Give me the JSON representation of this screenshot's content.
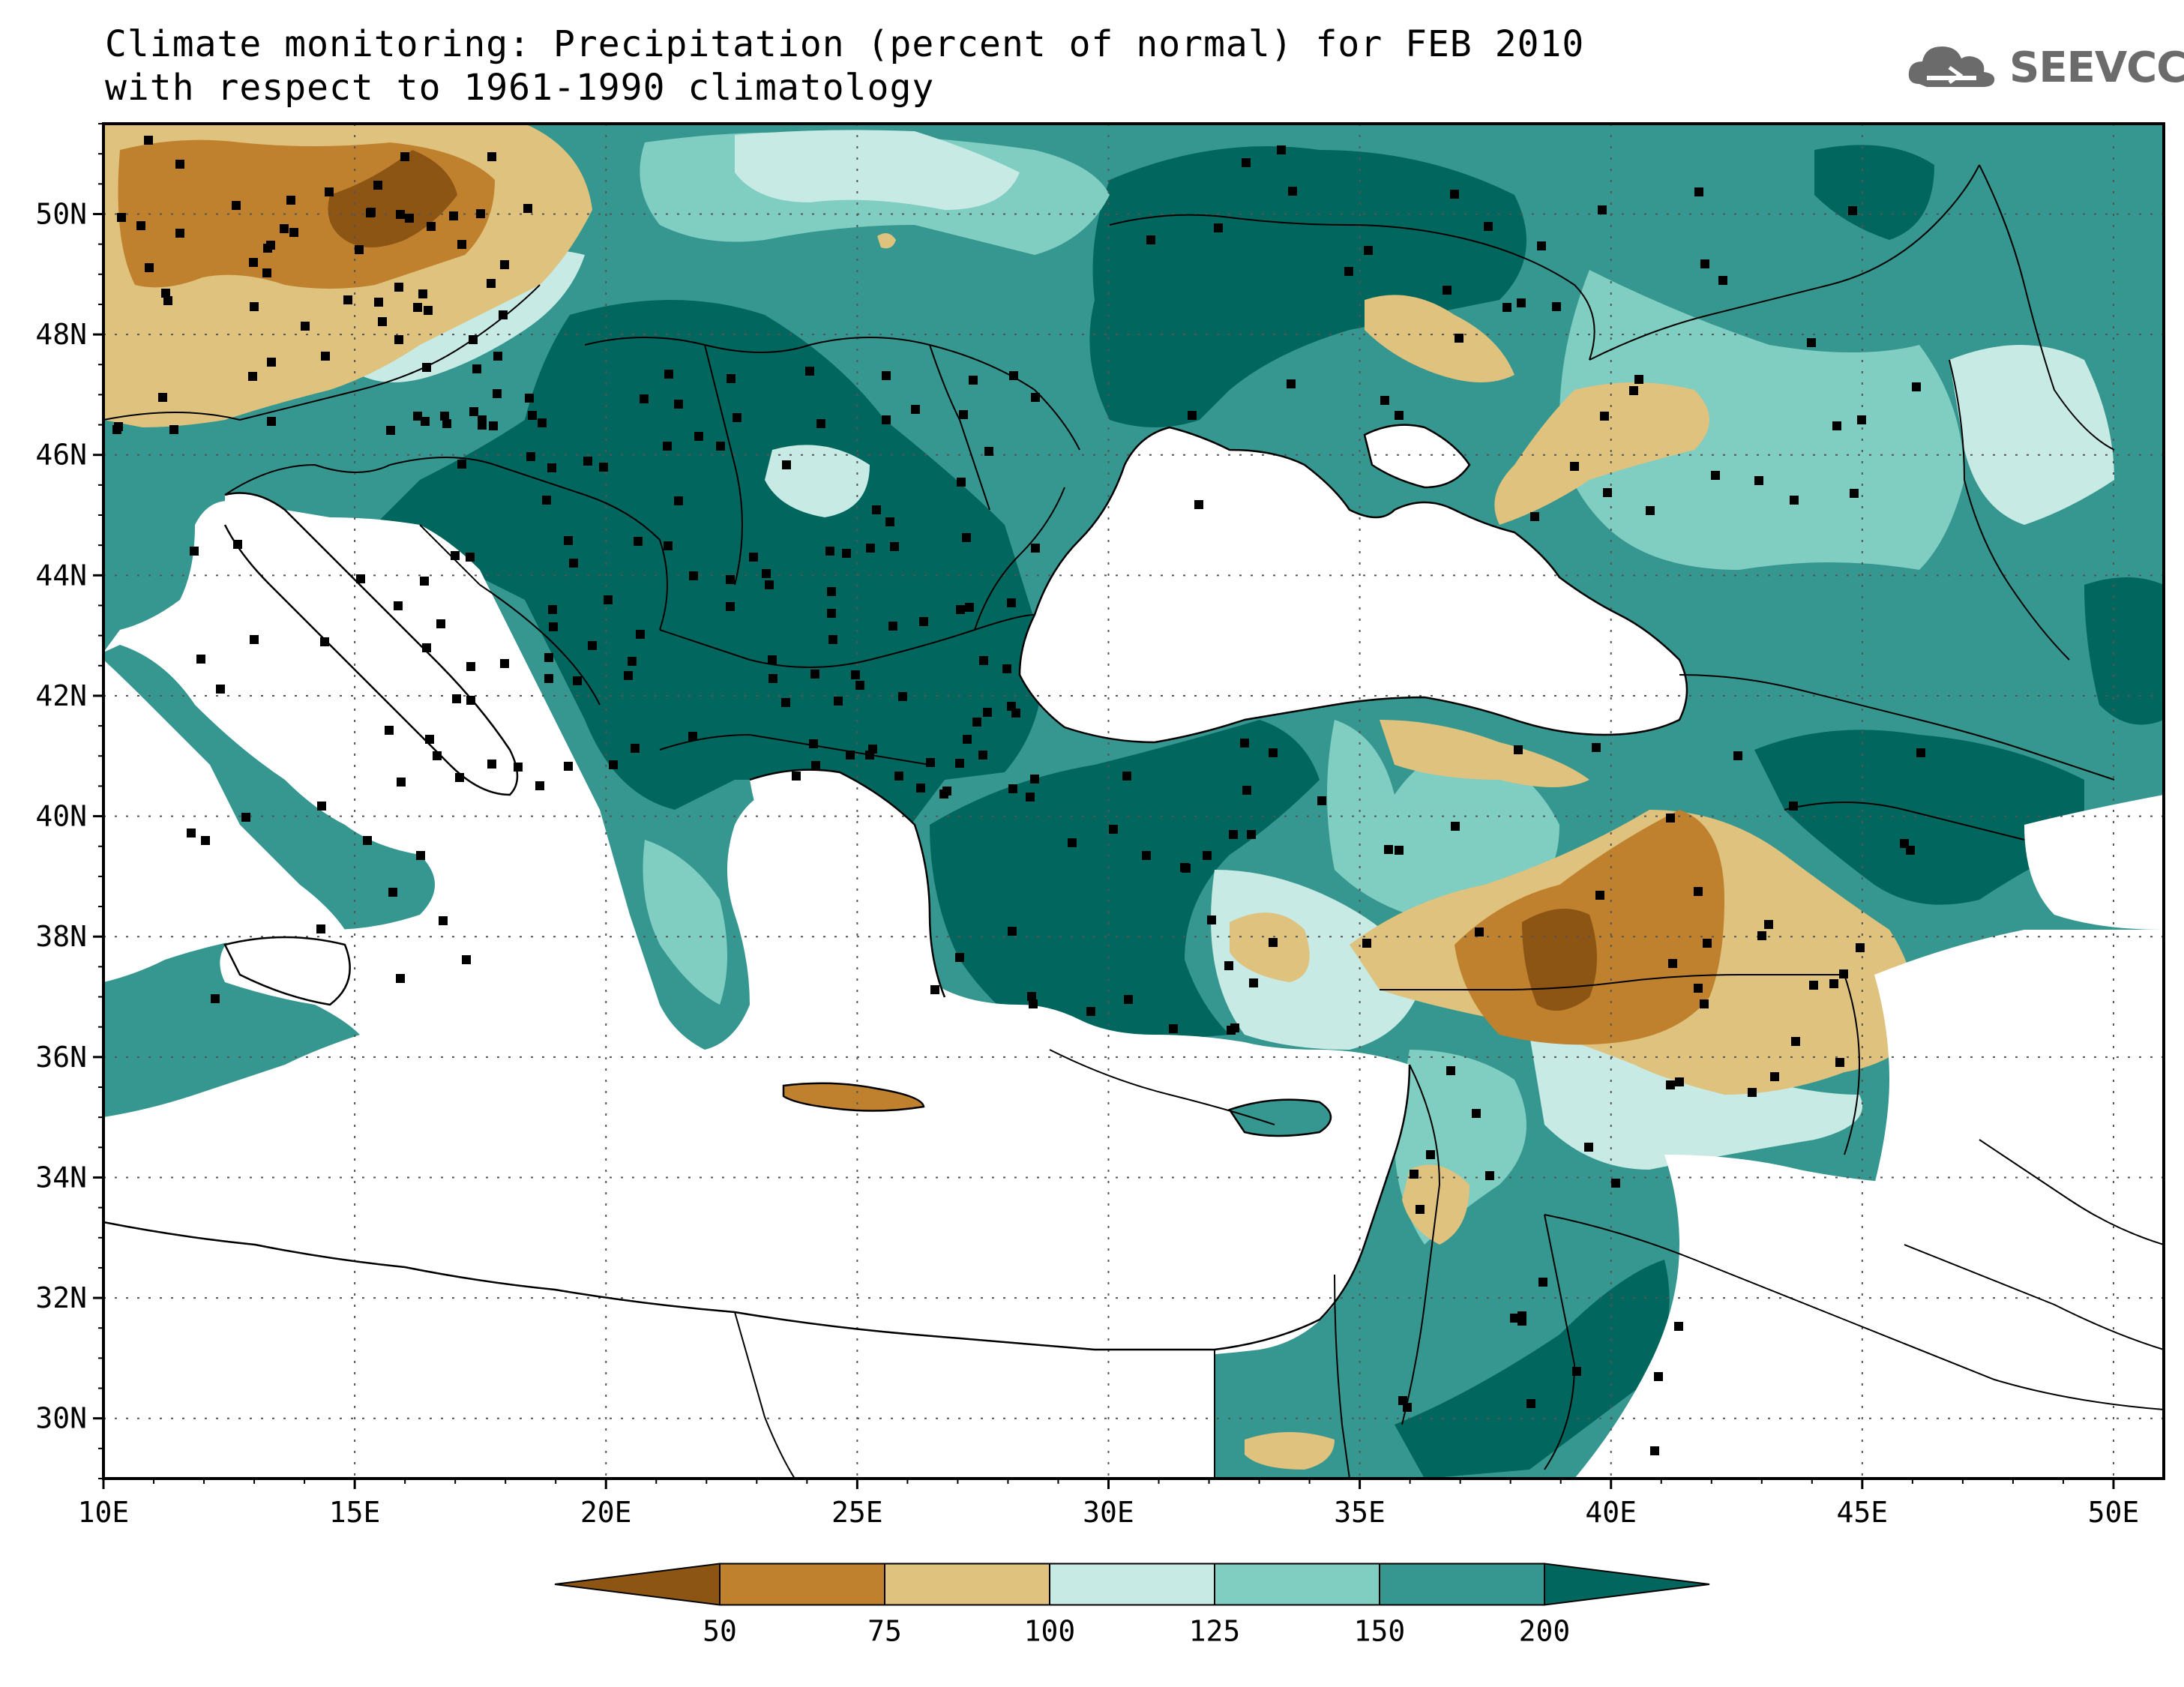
{
  "title": {
    "line1": "Climate monitoring: Precipitation (percent of normal) for FEB 2010",
    "line2": "with respect to 1961-1990 climatology"
  },
  "logo": {
    "text": "SEEVCCC",
    "icon": "cloud-icon"
  },
  "map": {
    "lon_range": [
      10,
      51
    ],
    "lat_range": [
      29,
      51.5
    ],
    "lon_ticks": [
      "10E",
      "15E",
      "20E",
      "25E",
      "30E",
      "35E",
      "40E",
      "45E",
      "50E"
    ],
    "lat_ticks": [
      "30N",
      "32N",
      "34N",
      "36N",
      "38N",
      "40N",
      "42N",
      "44N",
      "46N",
      "48N",
      "50N"
    ],
    "grid": "dotted"
  },
  "legend": {
    "labels": [
      "50",
      "75",
      "100",
      "125",
      "150",
      "200"
    ],
    "colors": [
      "#8c5514",
      "#bf812e",
      "#dfc27d",
      "#c7eae5",
      "#80cdc1",
      "#35978f",
      "#01665e"
    ]
  },
  "colors": {
    "sea": "#ffffff",
    "frame": "#000000"
  }
}
